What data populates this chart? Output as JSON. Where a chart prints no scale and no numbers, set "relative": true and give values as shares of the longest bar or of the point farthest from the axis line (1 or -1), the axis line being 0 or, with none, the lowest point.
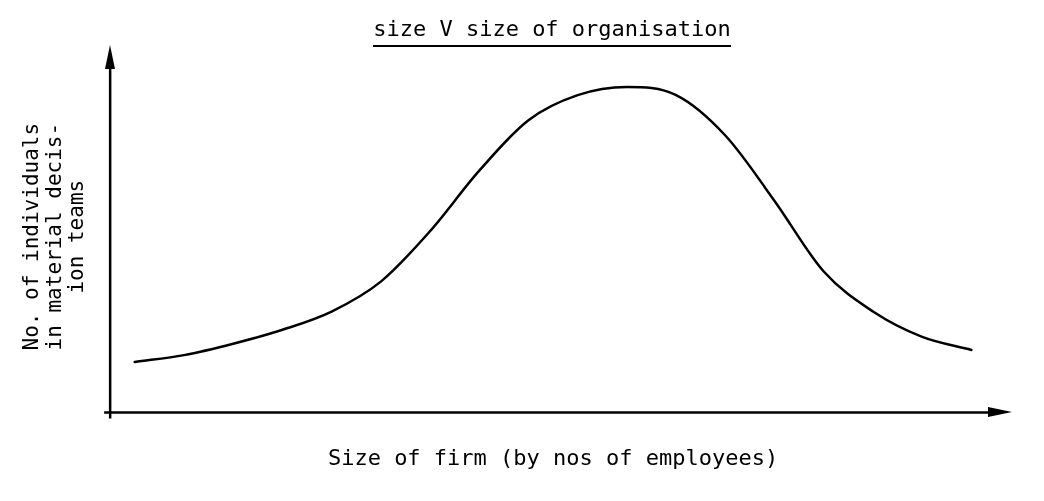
{
  "chart_data": {
    "type": "line",
    "title": "size V size of organisation",
    "xlabel": "Size of firm (by nos of employees)",
    "ylabel": "No. of individuals\nin material decis-\nion teams",
    "relative": true,
    "categories": [
      null,
      null,
      null,
      null,
      null,
      null,
      null,
      null,
      null,
      null,
      null,
      null,
      null,
      null,
      null,
      null,
      null,
      null
    ],
    "series": [
      {
        "color": "#000000",
        "values": [
          0.155,
          0.176,
          0.211,
          0.254,
          0.31,
          0.402,
          0.557,
          0.743,
          0.898,
          0.975,
          1,
          0.975,
          0.851,
          0.65,
          0.433,
          0.31,
          0.232,
          0.192
        ]
      }
    ],
    "grid": false,
    "legend": false,
    "marker": "none",
    "line_style": "solid"
  }
}
